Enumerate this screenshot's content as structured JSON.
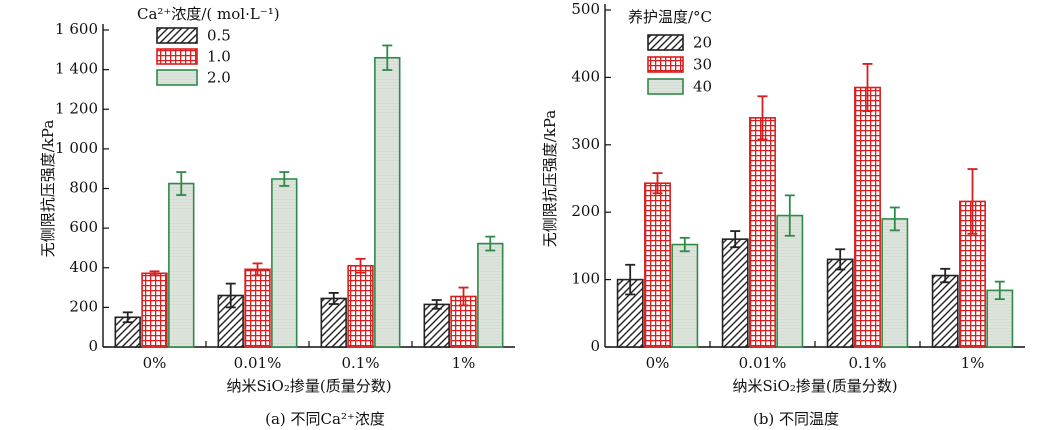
{
  "colors": {
    "series_0": "#222222",
    "series_1": "#d81e1e",
    "series_2": "#2e8a4a",
    "fill_2": "#dde4dc",
    "axis": "#111111"
  },
  "chart_data": [
    {
      "type": "bar",
      "panel_caption": "(a) 不同Ca²⁺浓度",
      "title": "",
      "xlabel": "纳米SiO₂掺量(质量分数)",
      "ylabel": "无侧限抗压强度/kPa",
      "categories": [
        "0%",
        "0.01%",
        "0.1%",
        "1%"
      ],
      "ylim": [
        0,
        1600
      ],
      "yticks": [
        0,
        200,
        400,
        600,
        800,
        1000,
        1200,
        1400,
        1600
      ],
      "ytick_labels": [
        "0",
        "200",
        "400",
        "600",
        "800",
        "1 000",
        "1 200",
        "1 400",
        "1 600"
      ],
      "legend_title": "Ca²⁺浓度/( mol·L⁻¹)",
      "legend_position": "top-left",
      "error_bars": true,
      "grid": false,
      "series": [
        {
          "name": "0.5",
          "pattern": "hatch",
          "values": [
            150,
            260,
            245,
            215
          ],
          "errors": [
            25,
            60,
            28,
            22
          ]
        },
        {
          "name": "1.0",
          "pattern": "grid",
          "values": [
            372,
            392,
            410,
            255
          ],
          "errors": [
            10,
            30,
            35,
            45
          ]
        },
        {
          "name": "2.0",
          "pattern": "solid",
          "values": [
            825,
            848,
            1460,
            522
          ],
          "errors": [
            58,
            35,
            62,
            35
          ]
        }
      ]
    },
    {
      "type": "bar",
      "panel_caption": "(b) 不同温度",
      "title": "",
      "xlabel": "纳米SiO₂掺量(质量分数)",
      "ylabel": "无侧限抗压强度/kPa",
      "categories": [
        "0%",
        "0.01%",
        "0.1%",
        "1%"
      ],
      "ylim": [
        0,
        500
      ],
      "yticks": [
        0,
        100,
        200,
        300,
        400,
        500
      ],
      "ytick_labels": [
        "0",
        "100",
        "200",
        "300",
        "400",
        "500"
      ],
      "legend_title": "养护温度/°C",
      "legend_position": "top-left",
      "error_bars": true,
      "grid": false,
      "series": [
        {
          "name": "20",
          "pattern": "hatch",
          "values": [
            100,
            160,
            130,
            106
          ],
          "errors": [
            22,
            12,
            15,
            10
          ]
        },
        {
          "name": "30",
          "pattern": "grid",
          "values": [
            243,
            340,
            385,
            216
          ],
          "errors": [
            15,
            32,
            35,
            48
          ]
        },
        {
          "name": "40",
          "pattern": "solid",
          "values": [
            152,
            195,
            190,
            84
          ],
          "errors": [
            10,
            30,
            17,
            13
          ]
        }
      ]
    }
  ]
}
